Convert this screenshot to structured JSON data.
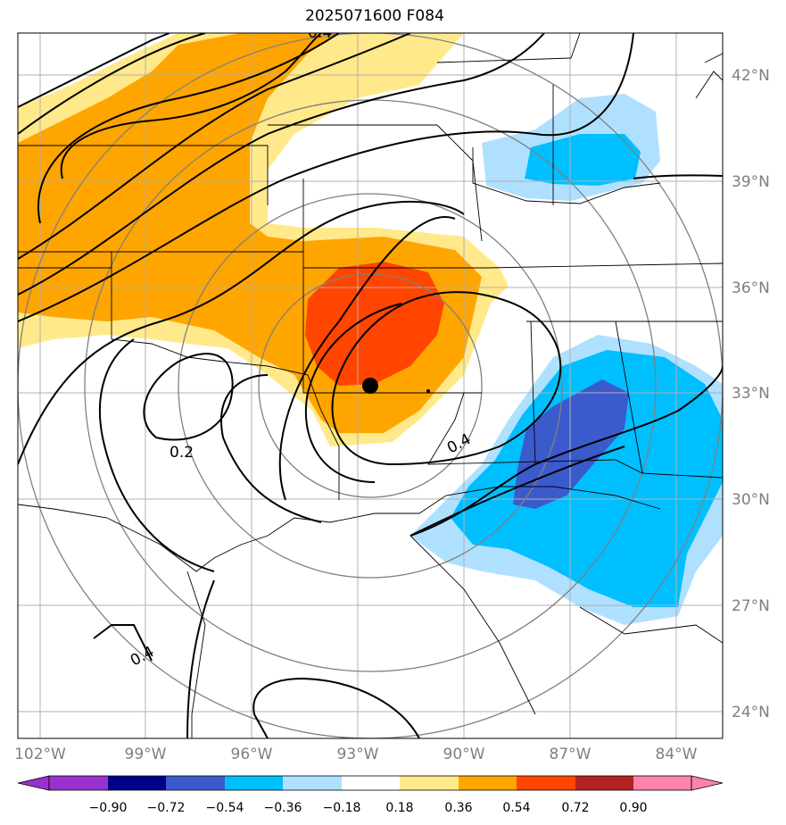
{
  "title": "2025071600 F084",
  "lat_labels": [
    "42°N",
    "39°N",
    "36°N",
    "33°N",
    "30°N",
    "27°N",
    "24°N"
  ],
  "lon_labels": [
    "102°W",
    "99°W",
    "96°W",
    "93°W",
    "90°W",
    "87°W",
    "84°W"
  ],
  "contour_labels": [
    "0.2",
    "0.4",
    "0.4",
    "0.4"
  ],
  "colorbar": {
    "ticks": [
      "−0.90",
      "−0.72",
      "−0.54",
      "−0.36",
      "−0.18",
      "0.18",
      "0.36",
      "0.54",
      "0.72",
      "0.90"
    ],
    "colors": [
      "#9932cc",
      "#00008b",
      "#3b5bcc",
      "#00bfff",
      "#b0e0ff",
      "#ffffff",
      "#ffe98a",
      "#ffa500",
      "#ff4500",
      "#b22222",
      "#ff82ab"
    ]
  },
  "colors": {
    "shade_yellow": "#ffe98a",
    "shade_orange": "#ffa500",
    "shade_red": "#ff4500",
    "shade_lightblue": "#b0e0ff",
    "shade_blue": "#00bfff",
    "shade_darkblue": "#3b5bcc",
    "grid": "#b0b0b0",
    "range_ring": "#808080"
  },
  "marker": {
    "lat": 33.2,
    "lon": -92.7
  }
}
